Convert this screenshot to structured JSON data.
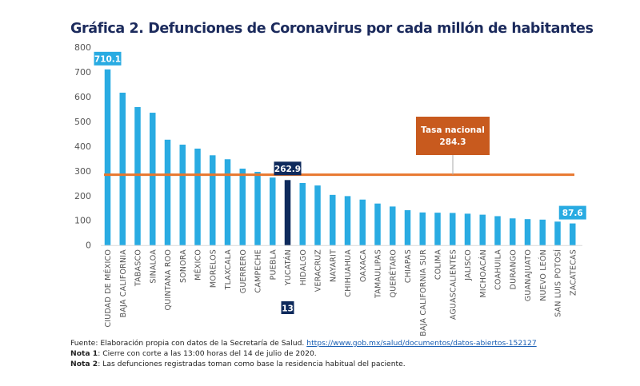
{
  "title": "Gráfica 2. Defunciones de Coronavirus por cada millón de habitantes",
  "chart_data": {
    "type": "bar",
    "title": "Gráfica 2. Defunciones de Coronavirus por cada millón de habitantes",
    "xlabel": "",
    "ylabel": "",
    "ylim": [
      0,
      800
    ],
    "yticks": [
      0,
      100,
      200,
      300,
      400,
      500,
      600,
      700,
      800
    ],
    "grid": false,
    "categories": [
      "CIUDAD DE MÉXICO",
      "BAJA CALIFORNIA",
      "TABASCO",
      "SINALOA",
      "QUINTANA ROO",
      "SONORA",
      "MÉXICO",
      "MORELOS",
      "TLAXCALA",
      "GUERRERO",
      "CAMPECHE",
      "PUEBLA",
      "YUCATÁN",
      "HIDALGO",
      "VERACRUZ",
      "NAYARIT",
      "CHIHUAHUA",
      "OAXACA",
      "TAMAULIPAS",
      "QUERÉTARO",
      "CHIAPAS",
      "BAJA CALIFORNIA SUR",
      "COLIMA",
      "AGUASCALIENTES",
      "JALISCO",
      "MICHOACÁN",
      "COAHUILA",
      "DURANGO",
      "GUANAJUATO",
      "NUEVO LEÓN",
      "SAN LUIS POTOSÍ",
      "ZACATECAS"
    ],
    "values": [
      710.1,
      616,
      558,
      535,
      426,
      406,
      390,
      363,
      347,
      309,
      296,
      273,
      262.9,
      251,
      241,
      203,
      198,
      184,
      168,
      156,
      141,
      132,
      131,
      130,
      127,
      123,
      117,
      108,
      105,
      103,
      95,
      87.6
    ],
    "highlight_index": 12,
    "colors": {
      "bar": "#29abe2",
      "highlight": "#0e2a5c",
      "reference_line": "#e8772e",
      "annotation_box": "#c85a1e"
    },
    "data_labels": [
      {
        "index": 0,
        "text": "710.1",
        "style": "bar"
      },
      {
        "index": 12,
        "text": "262.9",
        "style": "highlight"
      },
      {
        "index": 31,
        "text": "87.6",
        "style": "bar"
      }
    ],
    "reference_line": {
      "value": 284.3,
      "label_line1": "Tasa nacional",
      "label_line2": "284.3"
    },
    "rank_badge": {
      "index": 12,
      "text": "13"
    }
  },
  "footer": {
    "source_prefix": "Fuente: Elaboración propia con datos de la Secretaría de Salud. ",
    "source_link": "https://www.gob.mx/salud/documentos/datos-abiertos-152127",
    "note1_label": "Nota 1",
    "note1_text": ": Cierre con corte a las 13:00 horas del 14 de julio de 2020.",
    "note2_label": "Nota 2",
    "note2_text": ": Las defunciones registradas toman como base la residencia habitual del paciente."
  }
}
